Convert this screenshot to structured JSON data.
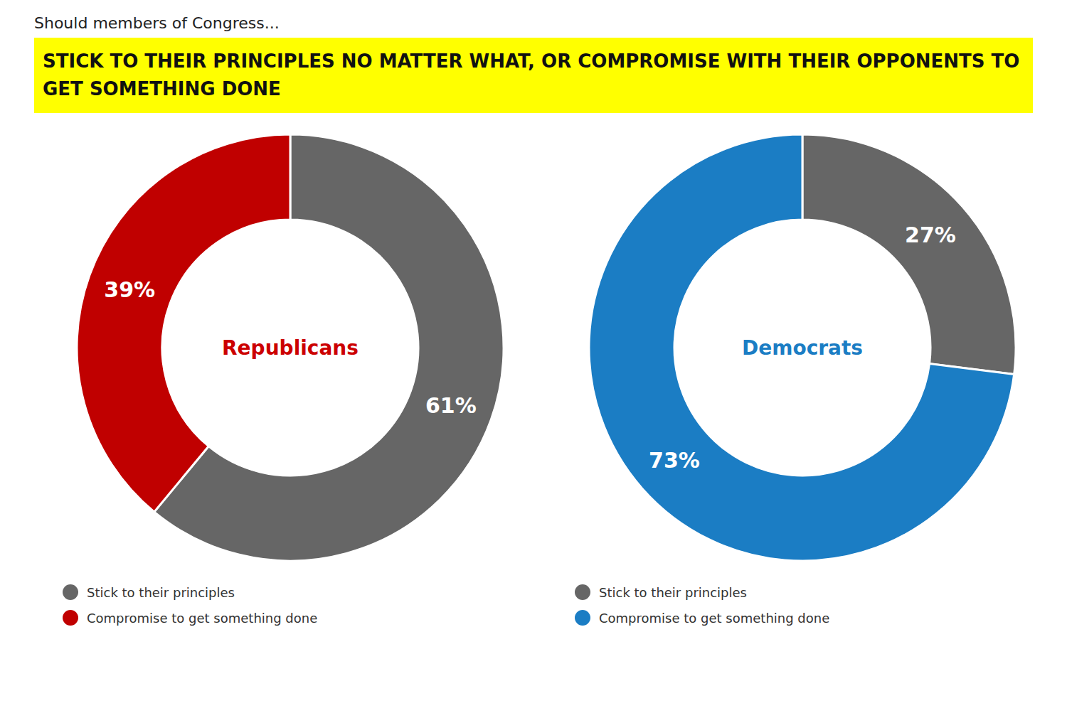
{
  "chart_data": {
    "type": "pie",
    "subtitle": "Should members of Congress...",
    "title": "STICK TO THEIR PRINCIPLES NO MATTER WHAT, OR COMPROMISE WITH THEIR OPPONENTS TO GET SOMETHING DONE",
    "categories": [
      "Stick to their principles",
      "Compromise to get something done"
    ],
    "series": [
      {
        "name": "Republicans",
        "color": "#CC0000",
        "colors": [
          "#666666",
          "#C00000"
        ],
        "values": [
          61,
          39
        ],
        "value_labels": [
          "61%",
          "39%"
        ]
      },
      {
        "name": "Democrats",
        "color": "#1B7DC4",
        "colors": [
          "#666666",
          "#1B7DC4"
        ],
        "values": [
          27,
          73
        ],
        "value_labels": [
          "27%",
          "73%"
        ]
      }
    ],
    "data_labels": true
  }
}
